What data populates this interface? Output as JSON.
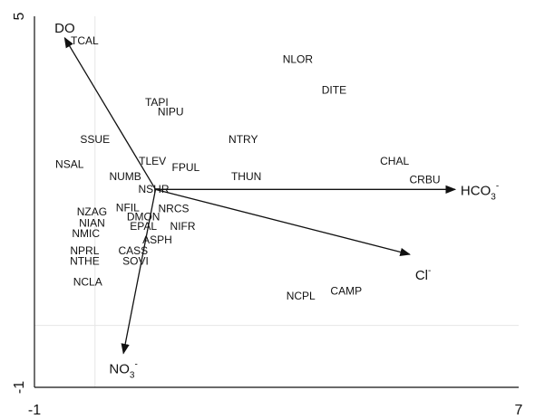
{
  "chart_data": {
    "type": "scatter",
    "title": "",
    "xlabel": "",
    "ylabel": "",
    "xlim": [
      -1,
      7
    ],
    "ylim": [
      -1,
      5
    ],
    "grid": true,
    "axes": {
      "x_ticks": [
        {
          "value": -1,
          "label": "-1"
        },
        {
          "value": 7,
          "label": "7"
        }
      ],
      "y_ticks": [
        {
          "value": -1,
          "label": "-1"
        },
        {
          "value": 5,
          "label": "5"
        }
      ]
    },
    "vectors": [
      {
        "label": "DO",
        "sup": "",
        "sub": "",
        "x": -0.5,
        "y": 4.65
      },
      {
        "label": "HCO",
        "sub": "3",
        "sup": "-",
        "x": 5.95,
        "y": 2.2
      },
      {
        "label": "Cl",
        "sub": "",
        "sup": "-",
        "x": 5.2,
        "y": 1.15
      },
      {
        "label": "NO",
        "sub": "3",
        "sup": "-",
        "x": 0.47,
        "y": -0.45
      }
    ],
    "vector_origin": {
      "x": 1.0,
      "y": 2.2
    },
    "species": [
      {
        "label": "TCAL",
        "x": -0.17,
        "y": 4.55
      },
      {
        "label": "NLOR",
        "x": 3.35,
        "y": 4.25
      },
      {
        "label": "DITE",
        "x": 3.95,
        "y": 3.75
      },
      {
        "label": "TAPI",
        "x": 1.02,
        "y": 3.55
      },
      {
        "label": "NIPU",
        "x": 1.25,
        "y": 3.4
      },
      {
        "label": "NTRY",
        "x": 2.45,
        "y": 2.95
      },
      {
        "label": "SSUE",
        "x": 0.0,
        "y": 2.95
      },
      {
        "label": "CHAL",
        "x": 4.95,
        "y": 2.6
      },
      {
        "label": "TLEV",
        "x": 0.95,
        "y": 2.6
      },
      {
        "label": "NSAL",
        "x": -0.42,
        "y": 2.55
      },
      {
        "label": "FPUL",
        "x": 1.5,
        "y": 2.5
      },
      {
        "label": "CRBU",
        "x": 5.45,
        "y": 2.3
      },
      {
        "label": "NUMB",
        "x": 0.5,
        "y": 2.35
      },
      {
        "label": "THUN",
        "x": 2.5,
        "y": 2.35
      },
      {
        "label": "NSHR",
        "x": 0.97,
        "y": 2.15
      },
      {
        "label": "NFIL",
        "x": 0.54,
        "y": 1.85
      },
      {
        "label": "NRCS",
        "x": 1.3,
        "y": 1.83
      },
      {
        "label": "NZAG",
        "x": -0.05,
        "y": 1.78
      },
      {
        "label": "DMON",
        "x": 0.8,
        "y": 1.7
      },
      {
        "label": "NIAN",
        "x": -0.05,
        "y": 1.6
      },
      {
        "label": "EPAL",
        "x": 0.8,
        "y": 1.55
      },
      {
        "label": "NIFR",
        "x": 1.45,
        "y": 1.55
      },
      {
        "label": "NMIC",
        "x": -0.15,
        "y": 1.43
      },
      {
        "label": "ASPH",
        "x": 1.03,
        "y": 1.33
      },
      {
        "label": "NPRL",
        "x": -0.17,
        "y": 1.15
      },
      {
        "label": "CASS",
        "x": 0.63,
        "y": 1.15
      },
      {
        "label": "NTHE",
        "x": -0.17,
        "y": 0.98
      },
      {
        "label": "SOVI",
        "x": 0.67,
        "y": 0.98
      },
      {
        "label": "NCLA",
        "x": -0.12,
        "y": 0.65
      },
      {
        "label": "CAMP",
        "x": 4.15,
        "y": 0.5
      },
      {
        "label": "NCPL",
        "x": 3.4,
        "y": 0.42
      }
    ],
    "reference_lines": {
      "x": 0.0,
      "y": 0.0
    }
  }
}
